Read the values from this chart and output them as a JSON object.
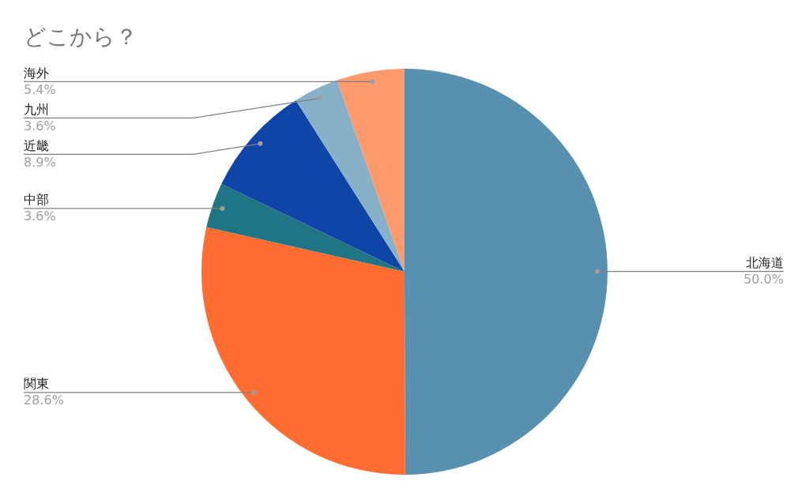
{
  "chart_data": {
    "type": "pie",
    "title": "どこから？",
    "categories": [
      "北海道",
      "関東",
      "中部",
      "近畿",
      "九州",
      "海外"
    ],
    "values": [
      50.0,
      28.6,
      3.6,
      8.9,
      3.6,
      5.4
    ],
    "value_labels": [
      "50.0%",
      "28.6%",
      "3.6%",
      "8.9%",
      "3.6%",
      "5.4%"
    ],
    "colors": [
      "#5891b0",
      "#ff6d31",
      "#1f7584",
      "#1045a8",
      "#87b0c9",
      "#ff9a6c"
    ],
    "legend": false
  }
}
